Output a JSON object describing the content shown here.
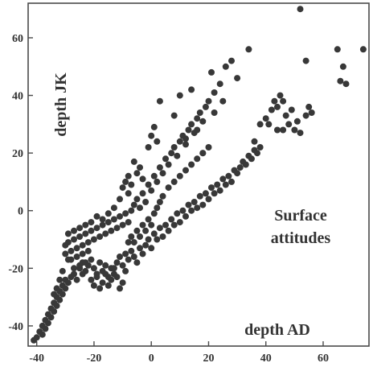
{
  "chart_data": {
    "type": "scatter",
    "title": "",
    "xlabel": "depth AD",
    "ylabel": "depth JK",
    "annotation": [
      "Surface",
      "attitudes"
    ],
    "xlim": [
      -43,
      76
    ],
    "ylim": [
      -47,
      72
    ],
    "x_ticks": [
      -40,
      -20,
      0,
      20,
      40,
      60
    ],
    "y_ticks": [
      -40,
      -20,
      0,
      20,
      40,
      60
    ],
    "grid": false,
    "legend": "none",
    "point_color": "#383838",
    "points": [
      [
        -41,
        -45
      ],
      [
        -40,
        -44
      ],
      [
        -39,
        -42
      ],
      [
        -38,
        -43
      ],
      [
        -38,
        -40
      ],
      [
        -37,
        -41
      ],
      [
        -37,
        -38
      ],
      [
        -36,
        -39
      ],
      [
        -36,
        -36
      ],
      [
        -35,
        -37
      ],
      [
        -35,
        -34
      ],
      [
        -34,
        -35
      ],
      [
        -34,
        -32
      ],
      [
        -33,
        -33
      ],
      [
        -33,
        -30
      ],
      [
        -32,
        -31
      ],
      [
        -32,
        -28
      ],
      [
        -31,
        -29
      ],
      [
        -31,
        -26
      ],
      [
        -30,
        -27
      ],
      [
        -30,
        -24
      ],
      [
        -29,
        -25
      ],
      [
        -28,
        -23
      ],
      [
        -27,
        -22
      ],
      [
        -26,
        -24
      ],
      [
        -25,
        -20
      ],
      [
        -24,
        -22
      ],
      [
        -24,
        -18
      ],
      [
        -23,
        -21
      ],
      [
        -22,
        -19
      ],
      [
        -21,
        -17
      ],
      [
        -20,
        -20
      ],
      [
        -19,
        -22
      ],
      [
        -18,
        -18
      ],
      [
        -17,
        -21
      ],
      [
        -16,
        -19
      ],
      [
        -15,
        -23
      ],
      [
        -14,
        -20
      ],
      [
        -13,
        -22
      ],
      [
        -12,
        -18
      ],
      [
        -11,
        -16
      ],
      [
        -10,
        -19
      ],
      [
        -9,
        -21
      ],
      [
        -8,
        -17
      ],
      [
        -7,
        -14
      ],
      [
        -6,
        -16
      ],
      [
        -5,
        -18
      ],
      [
        -4,
        -13
      ],
      [
        -3,
        -15
      ],
      [
        -2,
        -12
      ],
      [
        -1,
        -10
      ],
      [
        0,
        -13
      ],
      [
        1,
        -8
      ],
      [
        2,
        -10
      ],
      [
        3,
        -6
      ],
      [
        4,
        -9
      ],
      [
        5,
        -5
      ],
      [
        6,
        -7
      ],
      [
        7,
        -3
      ],
      [
        8,
        -5
      ],
      [
        9,
        -1
      ],
      [
        10,
        -4
      ],
      [
        11,
        0
      ],
      [
        12,
        -2
      ],
      [
        13,
        2
      ],
      [
        14,
        0
      ],
      [
        15,
        3
      ],
      [
        16,
        1
      ],
      [
        17,
        5
      ],
      [
        18,
        2
      ],
      [
        19,
        6
      ],
      [
        20,
        4
      ],
      [
        21,
        8
      ],
      [
        22,
        6
      ],
      [
        23,
        9
      ],
      [
        24,
        7
      ],
      [
        25,
        11
      ],
      [
        26,
        9
      ],
      [
        27,
        12
      ],
      [
        28,
        10
      ],
      [
        29,
        14
      ],
      [
        30,
        13
      ],
      [
        31,
        15
      ],
      [
        32,
        17
      ],
      [
        33,
        16
      ],
      [
        34,
        19
      ],
      [
        35,
        18
      ],
      [
        36,
        21
      ],
      [
        37,
        20
      ],
      [
        38,
        22
      ],
      [
        -29,
        -11
      ],
      [
        -28,
        -14
      ],
      [
        -27,
        -10
      ],
      [
        -26,
        -13
      ],
      [
        -25,
        -9
      ],
      [
        -24,
        -12
      ],
      [
        -23,
        -8
      ],
      [
        -22,
        -11
      ],
      [
        -21,
        -7
      ],
      [
        -20,
        -10
      ],
      [
        -19,
        -6
      ],
      [
        -18,
        -9
      ],
      [
        -17,
        -5
      ],
      [
        -16,
        -8
      ],
      [
        -15,
        -4
      ],
      [
        -14,
        -7
      ],
      [
        -13,
        -3
      ],
      [
        -12,
        -6
      ],
      [
        -11,
        -2
      ],
      [
        -10,
        -5
      ],
      [
        -9,
        -1
      ],
      [
        -8,
        -4
      ],
      [
        -7,
        0
      ],
      [
        -6,
        2
      ],
      [
        -5,
        4
      ],
      [
        -4,
        1
      ],
      [
        -3,
        6
      ],
      [
        -2,
        3
      ],
      [
        -1,
        9
      ],
      [
        0,
        7
      ],
      [
        1,
        12
      ],
      [
        2,
        10
      ],
      [
        3,
        15
      ],
      [
        4,
        13
      ],
      [
        5,
        18
      ],
      [
        6,
        16
      ],
      [
        7,
        20
      ],
      [
        8,
        22
      ],
      [
        9,
        19
      ],
      [
        10,
        24
      ],
      [
        11,
        26
      ],
      [
        12,
        23
      ],
      [
        13,
        28
      ],
      [
        14,
        30
      ],
      [
        15,
        27
      ],
      [
        16,
        32
      ],
      [
        17,
        34
      ],
      [
        18,
        31
      ],
      [
        19,
        36
      ],
      [
        20,
        38
      ],
      [
        -28,
        -17
      ],
      [
        -27,
        -20
      ],
      [
        -26,
        -16
      ],
      [
        -25,
        -19
      ],
      [
        -24,
        -15
      ],
      [
        -23,
        -18
      ],
      [
        -22,
        -14
      ],
      [
        -21,
        -24
      ],
      [
        -20,
        -26
      ],
      [
        -19,
        -23
      ],
      [
        -18,
        -27
      ],
      [
        -17,
        -25
      ],
      [
        -16,
        -22
      ],
      [
        -15,
        -26
      ],
      [
        -14,
        -24
      ],
      [
        -13,
        -20
      ],
      [
        -12,
        -23
      ],
      [
        -11,
        -27
      ],
      [
        -10,
        -25
      ],
      [
        -9,
        -15
      ],
      [
        -8,
        -11
      ],
      [
        -7,
        -9
      ],
      [
        -6,
        -11
      ],
      [
        -5,
        -7
      ],
      [
        -4,
        -9
      ],
      [
        -3,
        -5
      ],
      [
        -2,
        -7
      ],
      [
        -1,
        -3
      ],
      [
        0,
        -5
      ],
      [
        1,
        -1
      ],
      [
        2,
        1
      ],
      [
        3,
        3
      ],
      [
        4,
        5
      ],
      [
        6,
        8
      ],
      [
        8,
        10
      ],
      [
        10,
        12
      ],
      [
        12,
        14
      ],
      [
        14,
        16
      ],
      [
        16,
        18
      ],
      [
        18,
        20
      ],
      [
        20,
        22
      ],
      [
        -10,
        8
      ],
      [
        -9,
        10
      ],
      [
        -8,
        6
      ],
      [
        -7,
        9
      ],
      [
        -5,
        13
      ],
      [
        -4,
        15
      ],
      [
        -3,
        11
      ],
      [
        -1,
        22
      ],
      [
        0,
        26
      ],
      [
        1,
        29
      ],
      [
        2,
        24
      ],
      [
        3,
        38
      ],
      [
        8,
        33
      ],
      [
        10,
        40
      ],
      [
        12,
        25
      ],
      [
        14,
        42
      ],
      [
        16,
        28
      ],
      [
        18,
        20
      ],
      [
        21,
        48
      ],
      [
        22,
        41
      ],
      [
        24,
        44
      ],
      [
        26,
        50
      ],
      [
        28,
        52
      ],
      [
        30,
        46
      ],
      [
        34,
        56
      ],
      [
        22,
        34
      ],
      [
        25,
        38
      ],
      [
        -6,
        17
      ],
      [
        -8,
        12
      ],
      [
        -11,
        4
      ],
      [
        -13,
        1
      ],
      [
        -15,
        -1
      ],
      [
        -17,
        -3
      ],
      [
        -19,
        -2
      ],
      [
        -21,
        -4
      ],
      [
        -23,
        -5
      ],
      [
        -25,
        -6
      ],
      [
        -27,
        -7
      ],
      [
        -29,
        -8
      ],
      [
        -30,
        -12
      ],
      [
        -30,
        -15
      ],
      [
        -29,
        -17
      ],
      [
        -31,
        -21
      ],
      [
        -32,
        -24
      ],
      [
        -33,
        -27
      ],
      [
        -34,
        -29
      ],
      [
        36,
        24
      ],
      [
        38,
        30
      ],
      [
        40,
        32
      ],
      [
        42,
        35
      ],
      [
        43,
        38
      ],
      [
        44,
        36
      ],
      [
        45,
        40
      ],
      [
        46,
        28
      ],
      [
        47,
        33
      ],
      [
        48,
        30
      ],
      [
        49,
        35
      ],
      [
        50,
        28
      ],
      [
        51,
        31
      ],
      [
        52,
        27
      ],
      [
        54,
        33
      ],
      [
        55,
        36
      ],
      [
        56,
        34
      ],
      [
        44,
        28
      ],
      [
        46,
        38
      ],
      [
        41,
        30
      ],
      [
        52,
        70
      ],
      [
        54,
        52
      ],
      [
        65,
        56
      ],
      [
        66,
        45
      ],
      [
        67,
        50
      ],
      [
        68,
        44
      ],
      [
        74,
        56
      ]
    ]
  }
}
